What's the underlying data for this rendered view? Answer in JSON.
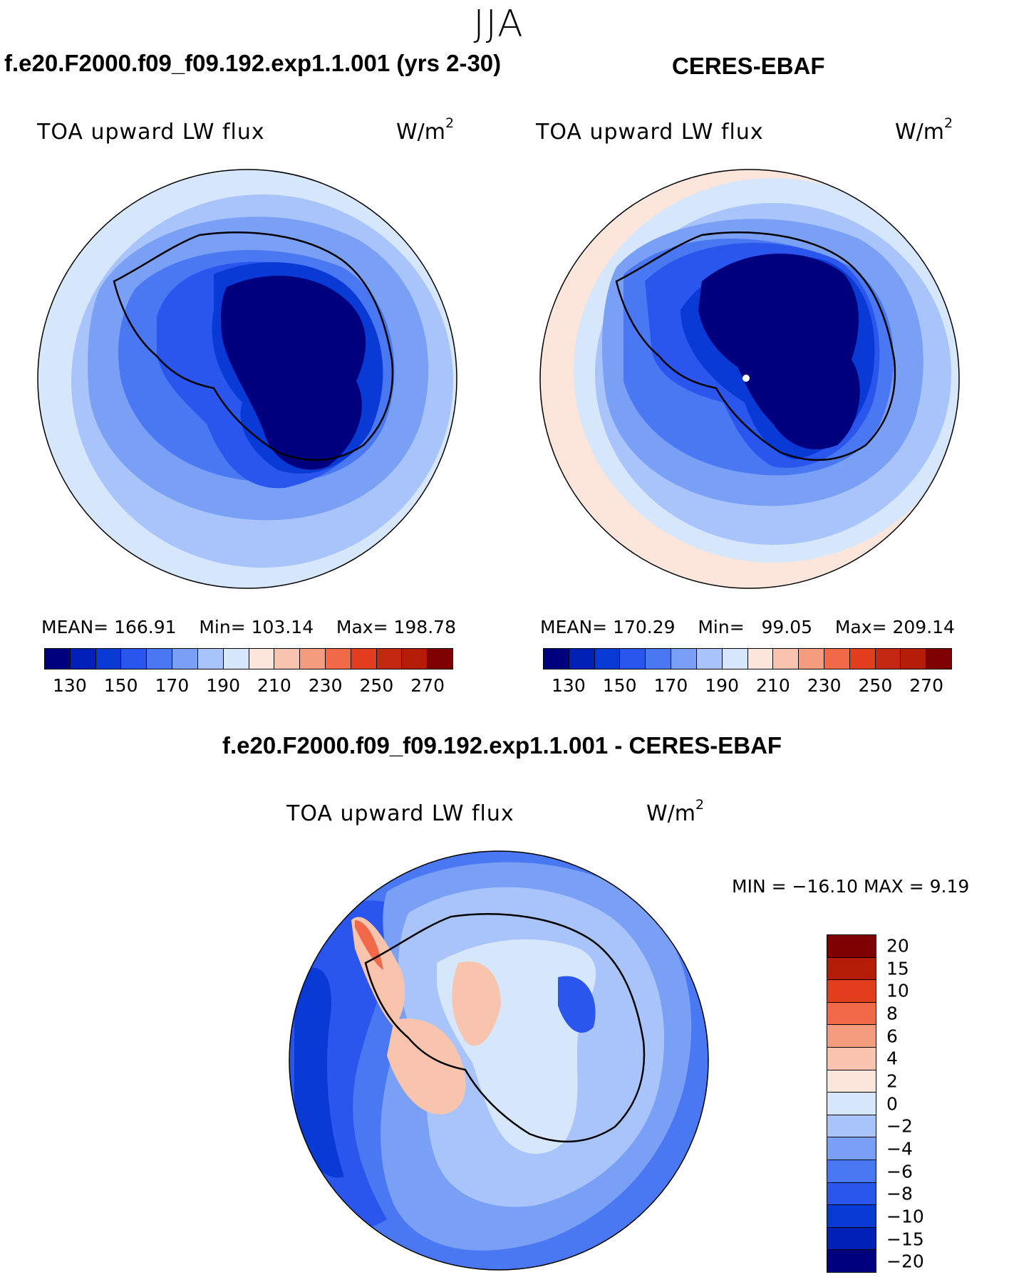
{
  "season": "JJA",
  "panel_left": {
    "title": "f.e20.F2000.f09_f09.192.exp1.1.001 (yrs 2-30)",
    "variable": "TOA upward LW flux",
    "units": "W/m",
    "units_sup": "2",
    "mean_label": "MEAN=",
    "mean_value": "166.91",
    "min_label": "Min=",
    "min_value": "103.14",
    "max_label": "Max=",
    "max_value": "198.78"
  },
  "panel_right": {
    "title": "CERES-EBAF",
    "variable": "TOA upward LW flux",
    "units": "W/m",
    "units_sup": "2",
    "mean_label": "MEAN=",
    "mean_value": "170.29",
    "min_label": "Min=",
    "min_value": "99.05",
    "max_label": "Max=",
    "max_value": "209.14"
  },
  "panel_diff": {
    "title": "f.e20.F2000.f09_f09.192.exp1.1.001 - CERES-EBAF",
    "variable": "TOA upward LW flux",
    "units": "W/m",
    "units_sup": "2",
    "minmax_text": "MIN = −16.10 MAX =    9.19"
  },
  "colorbar_abs": {
    "colors": [
      "#00007f",
      "#0020b8",
      "#0a3ad6",
      "#2a56ee",
      "#4a78f2",
      "#7aa0f6",
      "#a8c4fa",
      "#d6e6fb",
      "#fce6dc",
      "#f8c4ae",
      "#f49c7e",
      "#f06a4a",
      "#e23e1e",
      "#c42810",
      "#b41c08",
      "#7f0000"
    ],
    "labels": [
      "130",
      "150",
      "170",
      "190",
      "210",
      "230",
      "250",
      "270"
    ]
  },
  "colorbar_diff": {
    "colors": [
      "#7f0000",
      "#b41c08",
      "#e23e1e",
      "#f06a4a",
      "#f49c7e",
      "#f8c4ae",
      "#fce6dc",
      "#d6e6fb",
      "#a8c4fa",
      "#7aa0f6",
      "#4a78f2",
      "#2a56ee",
      "#0a3ad6",
      "#0020b8",
      "#00007f"
    ],
    "labels": [
      "20",
      "15",
      "10",
      "8",
      "6",
      "4",
      "2",
      "0",
      "−2",
      "−4",
      "−6",
      "−8",
      "−10",
      "−15",
      "−20"
    ]
  }
}
